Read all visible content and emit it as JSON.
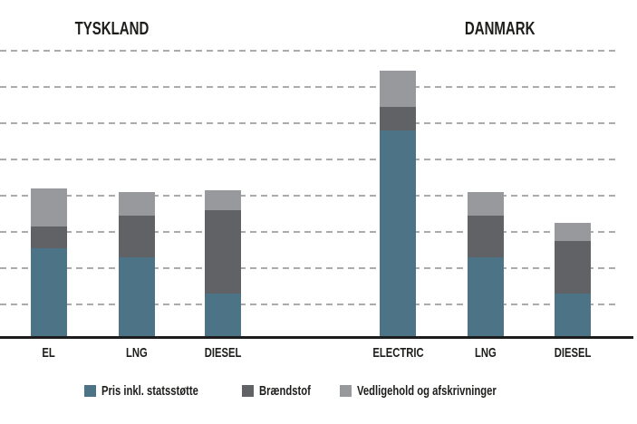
{
  "chart_data": {
    "type": "stacked-bar",
    "title": "",
    "groups": [
      {
        "label": "TYSKLAND",
        "categories": [
          "EL",
          "LNG",
          "DIESEL"
        ]
      },
      {
        "label": "DANMARK",
        "categories": [
          "ELECTRIC",
          "LNG",
          "DIESEL"
        ]
      }
    ],
    "categories": [
      "EL",
      "LNG",
      "DIESEL",
      "ELECTRIC",
      "LNG",
      "DIESEL"
    ],
    "series": [
      {
        "name": "Pris inkl. statsstøtte",
        "color": "#4d7486",
        "values": [
          2.45,
          2.2,
          1.2,
          5.7,
          2.2,
          1.2
        ]
      },
      {
        "name": "Brændstof",
        "color": "#606265",
        "values": [
          0.6,
          1.15,
          2.3,
          0.65,
          1.15,
          1.45
        ]
      },
      {
        "name": "Vedligehold og afskrivninger",
        "color": "#97999c",
        "values": [
          1.05,
          0.65,
          0.55,
          1.0,
          0.65,
          0.5
        ]
      }
    ],
    "stack_totals": [
      4.1,
      4.0,
      4.05,
      7.35,
      4.0,
      3.15
    ],
    "y_axis": {
      "tick_labels_visible": false,
      "gridline_count": 8,
      "value_per_gridline_interval": 1,
      "ylim": [
        0,
        8
      ],
      "gridline_style": "dashed"
    },
    "x_axis": {
      "baseline_visible": true
    },
    "legend_position": "bottom",
    "colors": {
      "gridline": "#ababab",
      "axis_line": "#1d1d1d",
      "text": "#1d1d1b",
      "background": "#ffffff"
    }
  }
}
